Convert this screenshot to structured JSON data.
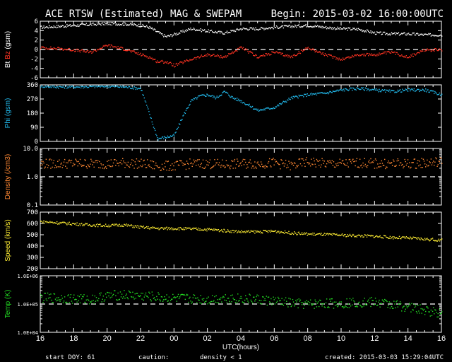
{
  "header": {
    "title": "ACE RTSW (Estimated) MAG & SWEPAM",
    "begin": "Begin: 2015-03-02 16:00:00UTC"
  },
  "footer": {
    "start_doy": "start DOY:  61",
    "caution": "caution:",
    "density_note": "density < 1",
    "created": "created: 2015-03-03 15:29:04UTC"
  },
  "colors": {
    "bt": "#ffffff",
    "bz": "#ff3322",
    "phi": "#22bbee",
    "density": "#ff8833",
    "speed": "#ffee33",
    "temp": "#22dd22",
    "caution": "#ff8833"
  },
  "chart_data": [
    {
      "type": "scatter",
      "panel": "bt_bz",
      "ylabel": "Bt  Bz  (gsm)",
      "ylim": [
        -6,
        6
      ],
      "yticks": [
        6,
        4,
        2,
        0,
        -2,
        -4,
        -6
      ],
      "xlim": [
        16,
        40
      ],
      "reference_line": 0,
      "series": [
        {
          "name": "Bt",
          "color": "#ffffff",
          "x": [
            16,
            17,
            18,
            19,
            20,
            21,
            22,
            22.5,
            23,
            23.5,
            24,
            25,
            26,
            27,
            28,
            29,
            30,
            31,
            32,
            33,
            34,
            35,
            36,
            37,
            38,
            39,
            40
          ],
          "y": [
            4.8,
            5,
            5.2,
            5.4,
            5.6,
            5.5,
            5.2,
            4.8,
            3.8,
            2.8,
            3.3,
            4.5,
            4,
            3.6,
            4.5,
            4.5,
            4.8,
            5,
            5.2,
            4.8,
            4.5,
            4.4,
            3.6,
            3.4,
            3.4,
            3.2,
            3.2
          ]
        },
        {
          "name": "Bz",
          "color": "#ff3322",
          "x": [
            16,
            17,
            18,
            19,
            20,
            21,
            22,
            22.5,
            23,
            23.5,
            24,
            25,
            26,
            27,
            28,
            29,
            30,
            31,
            32,
            33,
            34,
            35,
            36,
            37,
            38,
            39,
            40
          ],
          "y": [
            0.5,
            0.3,
            0,
            -0.5,
            1,
            0.2,
            -1,
            -1.5,
            -2.5,
            -2.5,
            -3.3,
            -2,
            -1,
            -1.5,
            0.5,
            -1.5,
            -0.5,
            -1.5,
            0.5,
            -1,
            -2,
            -1,
            -1,
            -0.5,
            -1.5,
            0,
            0
          ]
        }
      ]
    },
    {
      "type": "scatter",
      "panel": "phi",
      "ylabel": "Phi (gsm)",
      "ylim": [
        0,
        360
      ],
      "yticks": [
        360,
        270,
        180,
        90,
        0
      ],
      "xlim": [
        16,
        40
      ],
      "series": [
        {
          "name": "Phi",
          "color": "#22bbee",
          "x": [
            16,
            17,
            18,
            19,
            20,
            21,
            22,
            23,
            24,
            24.5,
            25,
            25.5,
            26,
            26.5,
            27,
            27.5,
            28,
            29,
            30,
            31,
            32,
            33,
            34,
            35,
            36,
            37,
            38,
            39,
            40
          ],
          "y": [
            355,
            350,
            350,
            352,
            355,
            350,
            340,
            20,
            40,
            160,
            260,
            290,
            300,
            280,
            320,
            280,
            260,
            200,
            220,
            280,
            300,
            310,
            330,
            340,
            330,
            320,
            330,
            330,
            300
          ]
        }
      ]
    },
    {
      "type": "scatter",
      "panel": "density",
      "ylabel": "Density (/cm3)",
      "yscale": "log",
      "ylim": [
        0.1,
        10
      ],
      "yticks": [
        "10.0",
        "1.0",
        "0.1"
      ],
      "xlim": [
        16,
        40
      ],
      "reference_line": 1,
      "series": [
        {
          "name": "Density",
          "color": "#ff8833",
          "x": [
            16,
            17,
            18,
            19,
            20,
            21,
            22,
            23,
            24,
            25,
            26,
            27,
            28,
            29,
            30,
            31,
            32,
            33,
            34,
            35,
            36,
            37,
            38,
            39,
            40
          ],
          "y": [
            3,
            3,
            3.1,
            3,
            3,
            3.2,
            3,
            2.5,
            2.5,
            3,
            3,
            2.8,
            3,
            3,
            3.2,
            2.5,
            3.5,
            3,
            3,
            3.2,
            3,
            3,
            3,
            3.2,
            3.5
          ]
        }
      ]
    },
    {
      "type": "scatter",
      "panel": "speed",
      "ylabel": "Speed (km/s)",
      "ylim": [
        200,
        700
      ],
      "yticks": [
        700,
        600,
        500,
        400,
        300,
        200
      ],
      "xlim": [
        16,
        40
      ],
      "series": [
        {
          "name": "Speed",
          "color": "#ffee33",
          "x": [
            16,
            17,
            18,
            19,
            20,
            21,
            22,
            23,
            24,
            25,
            26,
            27,
            28,
            29,
            30,
            31,
            32,
            33,
            34,
            35,
            36,
            37,
            38,
            39,
            40
          ],
          "y": [
            620,
            610,
            600,
            590,
            585,
            590,
            570,
            560,
            560,
            555,
            550,
            540,
            530,
            530,
            535,
            520,
            510,
            505,
            500,
            495,
            490,
            480,
            475,
            465,
            455
          ]
        }
      ]
    },
    {
      "type": "scatter",
      "panel": "temp",
      "ylabel": "Temp (K)",
      "yscale": "log",
      "ylim": [
        10000,
        1000000
      ],
      "yticks": [
        "1.0E+06",
        "1.0E+05",
        "1.0E+04"
      ],
      "xlim": [
        16,
        40
      ],
      "reference_line": 100000,
      "series": [
        {
          "name": "Temp",
          "color": "#22dd22",
          "x": [
            16,
            17,
            18,
            19,
            20,
            21,
            22,
            23,
            24,
            25,
            26,
            27,
            28,
            29,
            30,
            31,
            32,
            33,
            34,
            35,
            36,
            37,
            38,
            39,
            40
          ],
          "y": [
            170000,
            170000,
            160000,
            150000,
            200000,
            220000,
            200000,
            180000,
            160000,
            160000,
            150000,
            170000,
            160000,
            150000,
            130000,
            110000,
            100000,
            110000,
            110000,
            120000,
            120000,
            100000,
            80000,
            60000,
            50000
          ]
        }
      ]
    },
    {
      "type": "axis",
      "panel": "time_axis",
      "xlabel": "UTC(hours)",
      "xticks": [
        16,
        18,
        20,
        22,
        24,
        26,
        28,
        30,
        32,
        34,
        36,
        38,
        40
      ],
      "xticklabels": [
        "16",
        "18",
        "20",
        "22",
        "00",
        "02",
        "04",
        "06",
        "08",
        "10",
        "12",
        "14",
        "16"
      ]
    }
  ]
}
